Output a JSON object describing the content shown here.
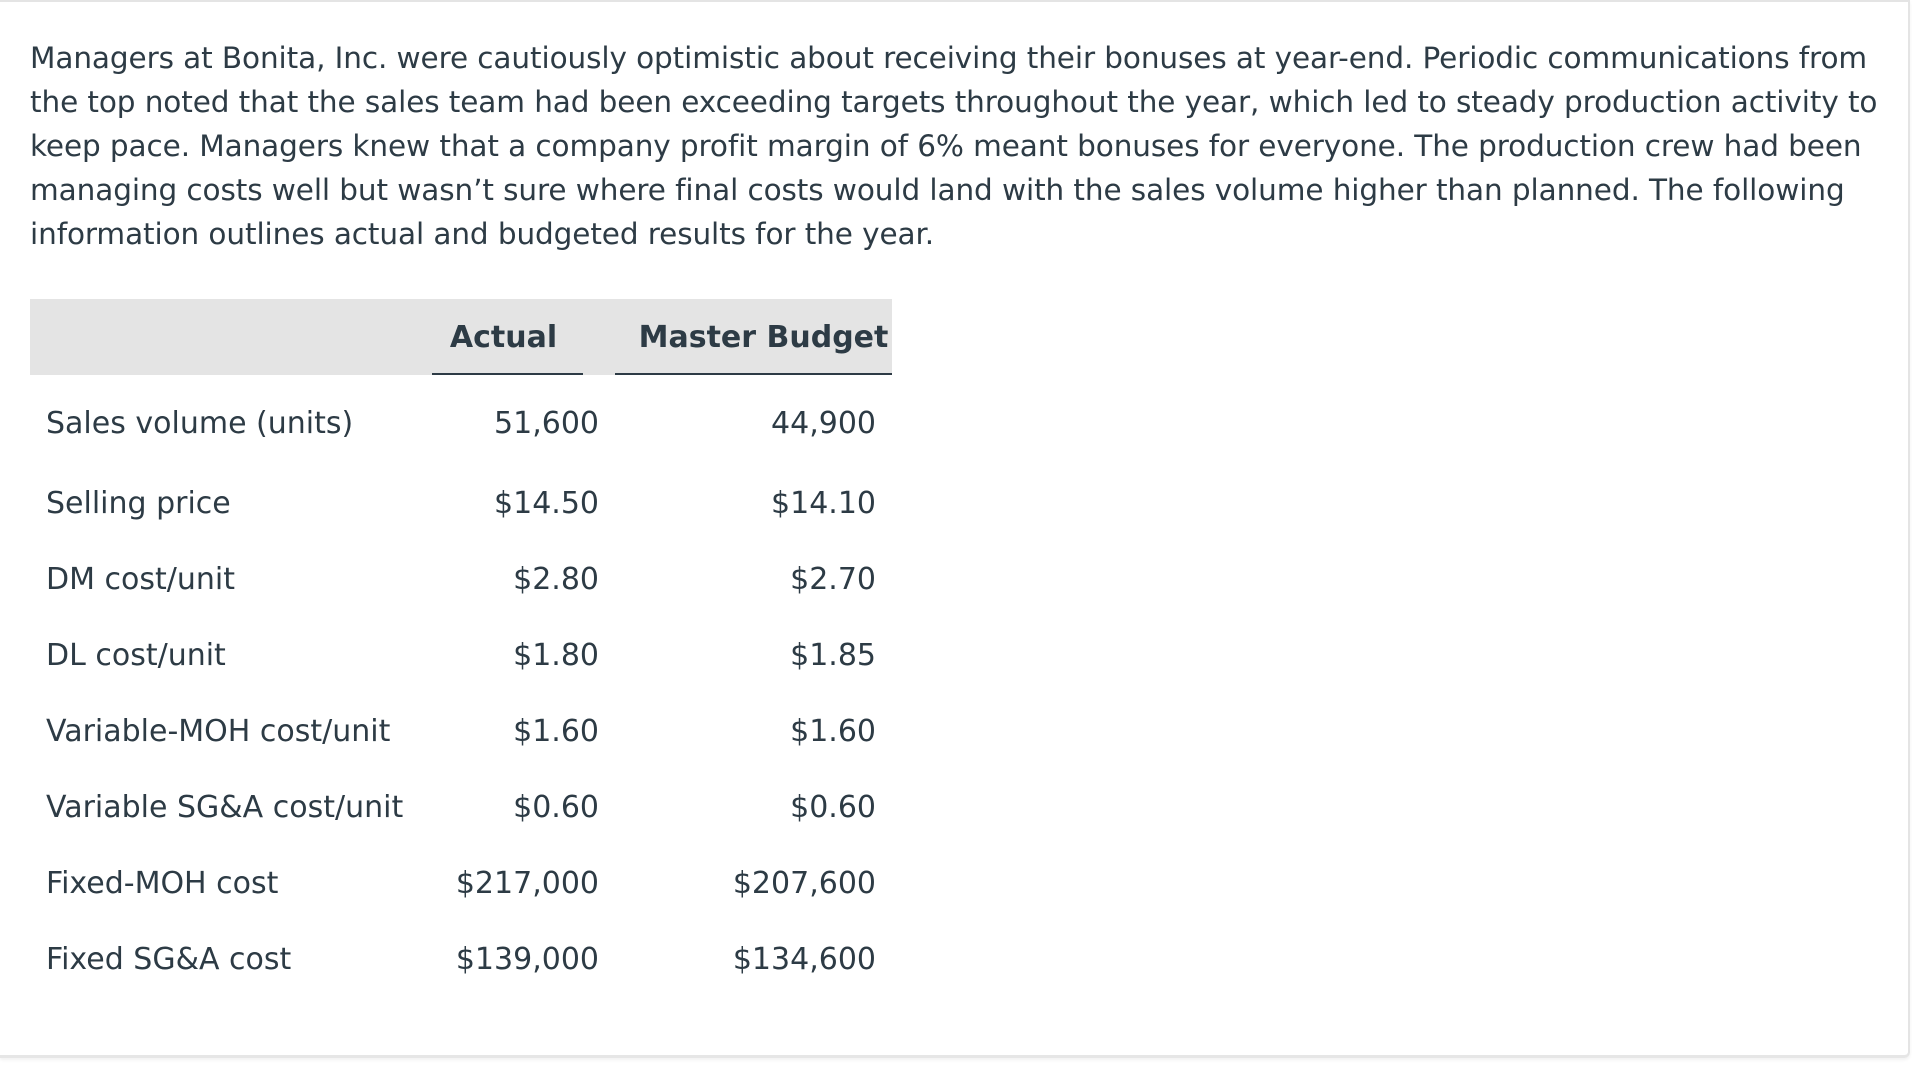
{
  "intro": {
    "paragraph": "Managers at Bonita, Inc. were cautiously optimistic about receiving their bonuses at year-end. Periodic communications from the top noted that the sales team had been exceeding targets throughout the year, which led to steady production activity to keep pace. Managers knew that a company profit margin of 6% meant bonuses for everyone. The production crew had been managing costs well but wasn’t sure where final costs would land with the sales volume higher than planned. The following information outlines actual and budgeted results for the year."
  },
  "table": {
    "headers": {
      "label": "",
      "actual": "Actual",
      "budget": "Master Budget"
    },
    "rows": [
      {
        "label": "Sales volume (units)",
        "actual": "51,600",
        "budget": "44,900"
      },
      {
        "label": "Selling price",
        "actual": "$14.50",
        "budget": "$14.10"
      },
      {
        "label": "DM cost/unit",
        "actual": "$2.80",
        "budget": "$2.70"
      },
      {
        "label": "DL cost/unit",
        "actual": "$1.80",
        "budget": "$1.85"
      },
      {
        "label": "Variable-MOH cost/unit",
        "actual": "$1.60",
        "budget": "$1.60"
      },
      {
        "label": "Variable SG&A cost/unit",
        "actual": "$0.60",
        "budget": "$0.60"
      },
      {
        "label": "Fixed-MOH cost",
        "actual": "$217,000",
        "budget": "$207,600"
      },
      {
        "label": "Fixed SG&A cost",
        "actual": "$139,000",
        "budget": "$134,600"
      }
    ]
  },
  "colors": {
    "text": "#2d3b45",
    "header_bg": "#e4e4e4",
    "background": "#ffffff"
  }
}
